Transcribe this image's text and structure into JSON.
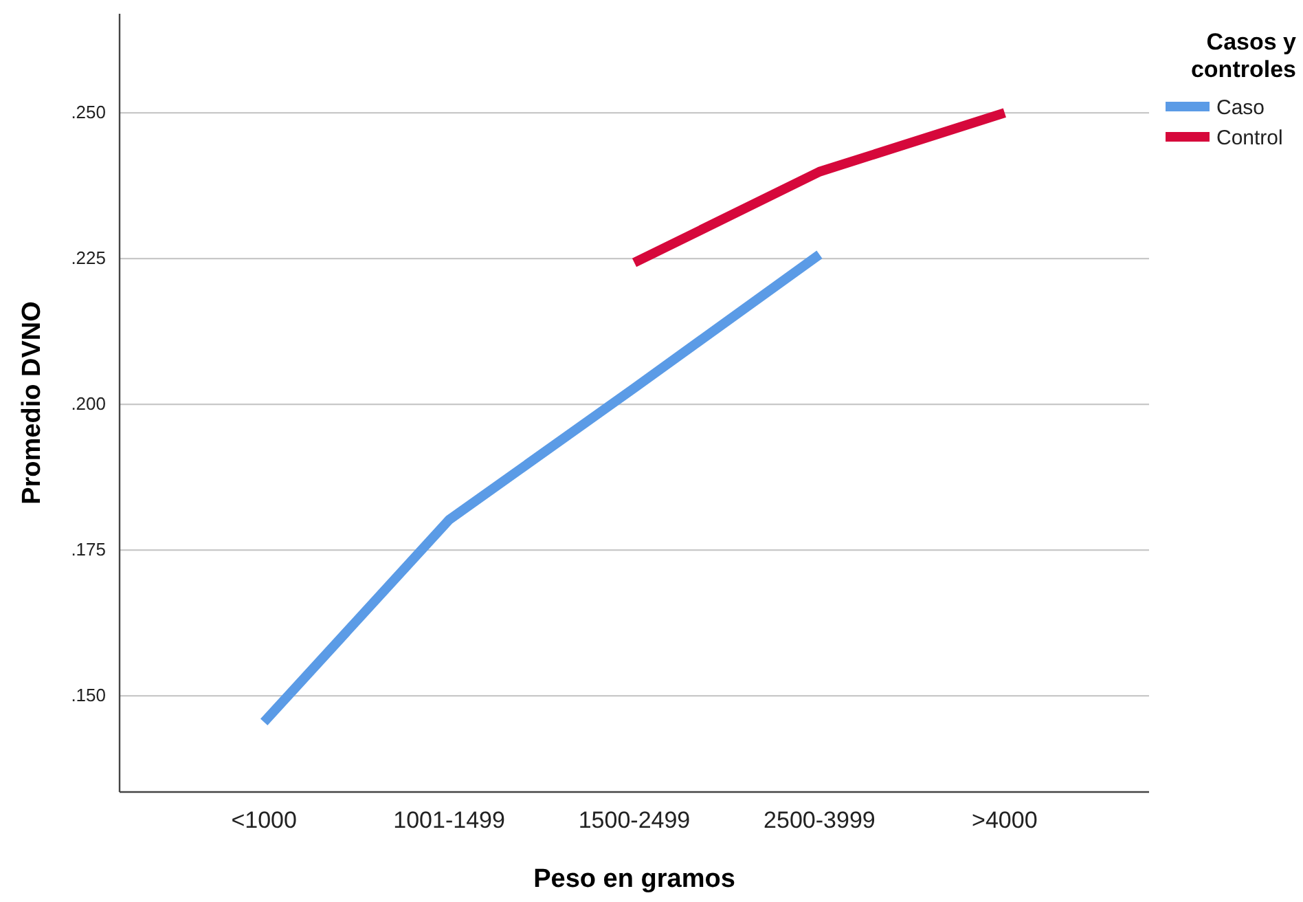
{
  "chart_data": {
    "type": "line",
    "xlabel": "Peso en gramos",
    "ylabel": "Promedio DVNO",
    "legend_title": "Casos y controles",
    "categories": [
      "<1000",
      "1001-1499",
      "1500-2499",
      "2500-3999",
      ">4000"
    ],
    "series": [
      {
        "name": "Caso",
        "color": "#5b9be6",
        "values": [
          0.1455,
          0.1802,
          0.2028,
          0.2257,
          null
        ]
      },
      {
        "name": "Control",
        "color": "#d6083b",
        "values": [
          null,
          null,
          0.2243,
          0.2399,
          0.25
        ]
      }
    ],
    "ylim": [
      0.1335,
      0.267
    ],
    "yticks": [
      {
        "value": 0.15,
        "label": ".150"
      },
      {
        "value": 0.175,
        "label": ".175"
      },
      {
        "value": 0.2,
        "label": ".200"
      },
      {
        "value": 0.225,
        "label": ".225"
      },
      {
        "value": 0.25,
        "label": ".250"
      }
    ],
    "grid": "y",
    "legend": "top right",
    "marker": "none",
    "line_style": "solid"
  }
}
